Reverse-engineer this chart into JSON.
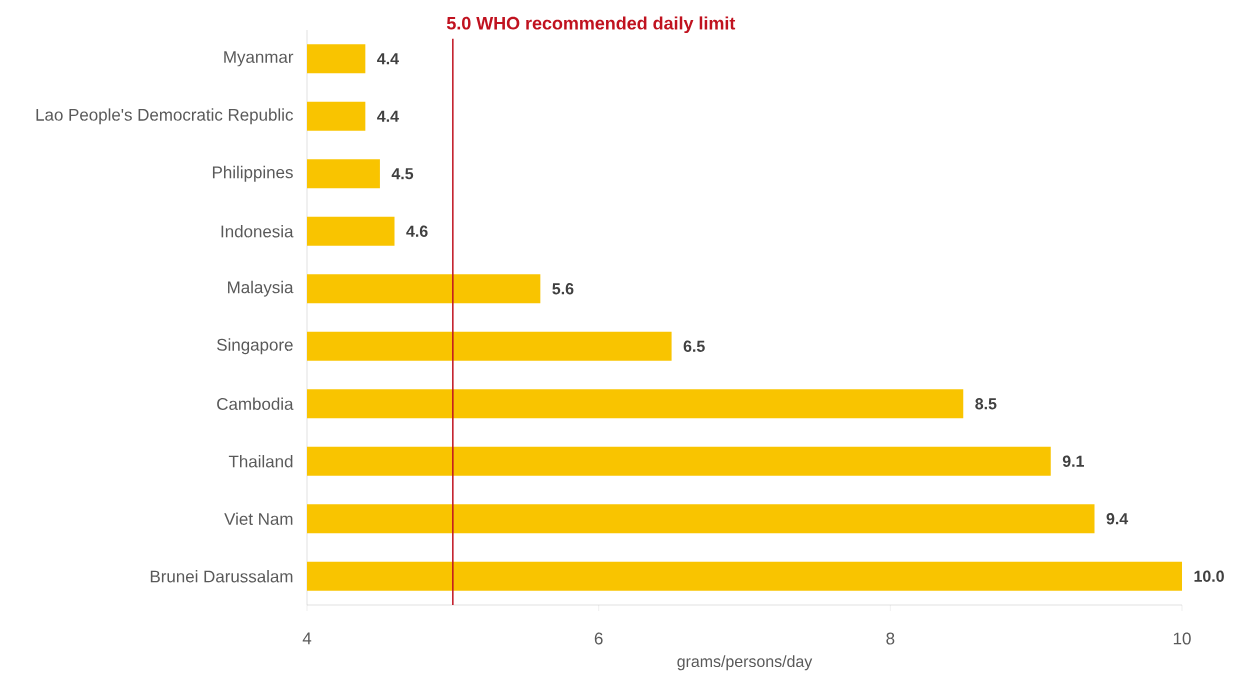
{
  "chart_data": {
    "type": "bar",
    "orientation": "horizontal",
    "xlabel": "grams/persons/day",
    "categories": [
      "Myanmar",
      "Lao People's Democratic Republic",
      "Philippines",
      "Indonesia",
      "Malaysia",
      "Singapore",
      "Cambodia",
      "Thailand",
      "Viet Nam",
      "Brunei Darussalam"
    ],
    "values": [
      4.4,
      4.4,
      4.5,
      4.6,
      5.6,
      6.5,
      8.5,
      9.1,
      9.4,
      10.0
    ],
    "value_labels": [
      "4.4",
      "4.4",
      "4.5",
      "4.6",
      "5.6",
      "6.5",
      "8.5",
      "9.1",
      "9.4",
      "10.0"
    ],
    "color": "#f9c400",
    "xlim": [
      4,
      10
    ],
    "xticks": [
      4,
      6,
      8,
      10
    ],
    "ref_lines": [
      {
        "axis": "x",
        "value": 5.0,
        "label": "5.0  WHO recommended daily limit",
        "color": "#c0121f"
      }
    ],
    "grid": false
  }
}
